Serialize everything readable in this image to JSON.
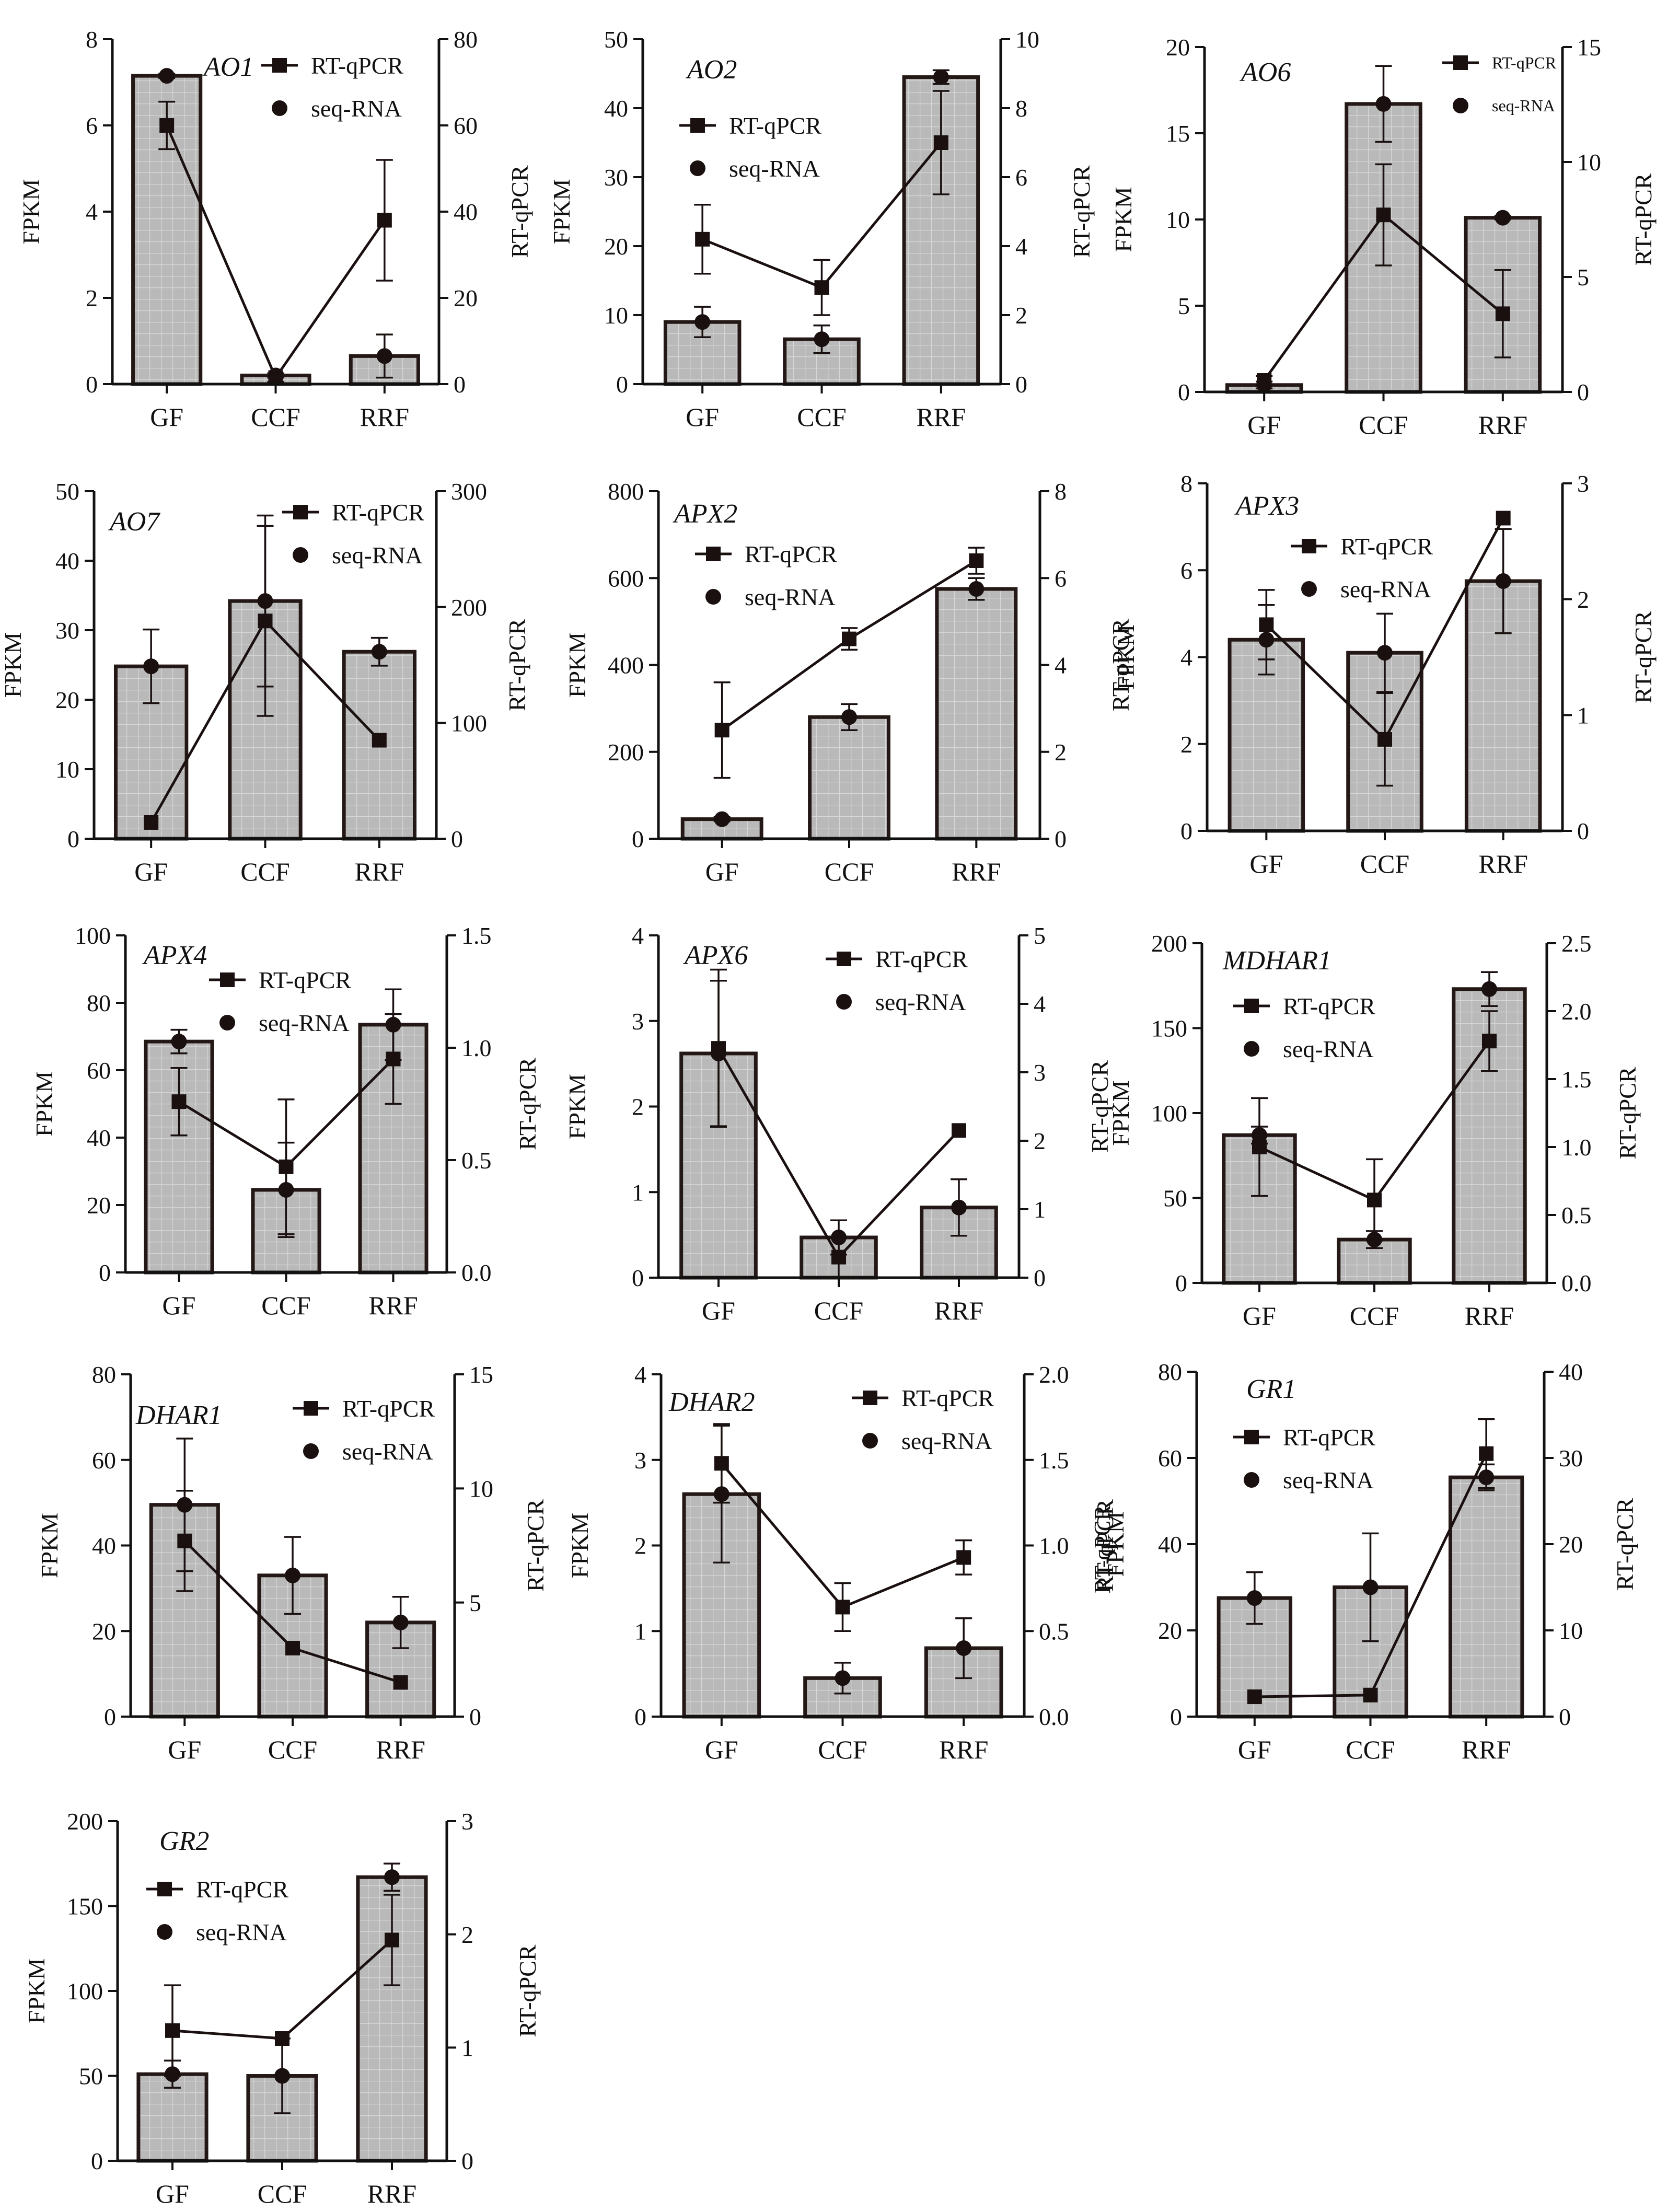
{
  "colors": {
    "bar_fill": "#b9b9b9",
    "bar_grid": "#d6d6d6",
    "bar_edge": "#231815",
    "line": "#1a1010",
    "axis": "#111111"
  },
  "legend": {
    "qpcr": "RT-qPCR",
    "seq": "seq-RNA"
  },
  "chart_data": [
    {
      "type": "bar+line",
      "title": "AO1",
      "categories": [
        "GF",
        "CCF",
        "RRF"
      ],
      "ylabel": "FPKM",
      "y2label": "RT-qPCR",
      "ylim": [
        0,
        8
      ],
      "yticks": [
        0,
        2,
        4,
        6,
        8
      ],
      "yticklabels": [
        "0",
        "2",
        "4",
        "6",
        "8"
      ],
      "y2lim": [
        0,
        80
      ],
      "y2ticks": [
        0,
        20,
        40,
        60,
        80
      ],
      "y2ticklabels": [
        "0",
        "20",
        "40",
        "60",
        "80"
      ],
      "fpkm": [
        7.15,
        0.2,
        0.65
      ],
      "fpkm_err": [
        0.05,
        0.05,
        0.5
      ],
      "seq_rna": [
        7.15,
        0.2,
        0.65
      ],
      "rt_qpcr": [
        60,
        1.5,
        38
      ],
      "rt_qpcr_err": [
        5.5,
        1,
        14
      ]
    },
    {
      "type": "bar+line",
      "title": "AO2",
      "categories": [
        "GF",
        "CCF",
        "RRF"
      ],
      "ylabel": "FPKM",
      "y2label": "RT-qPCR",
      "ylim": [
        0,
        50
      ],
      "yticks": [
        0,
        10,
        20,
        30,
        40,
        50
      ],
      "yticklabels": [
        "0",
        "10",
        "20",
        "30",
        "40",
        "50"
      ],
      "y2lim": [
        0,
        10
      ],
      "y2ticks": [
        0,
        2,
        4,
        6,
        8,
        10
      ],
      "y2ticklabels": [
        "0",
        "2",
        "4",
        "6",
        "8",
        "10"
      ],
      "fpkm": [
        9,
        6.5,
        44.5
      ],
      "fpkm_err": [
        2.2,
        2,
        1
      ],
      "seq_rna": [
        9,
        6.5,
        44.5
      ],
      "rt_qpcr": [
        4.2,
        2.8,
        7
      ],
      "rt_qpcr_err": [
        1,
        0.8,
        1.5
      ]
    },
    {
      "type": "bar+line",
      "title": "AO6",
      "categories": [
        "GF",
        "CCF",
        "RRF"
      ],
      "ylabel": "FPKM",
      "y2label": "RT-qPCR",
      "ylim": [
        0,
        20
      ],
      "yticks": [
        0,
        5,
        10,
        15,
        20
      ],
      "yticklabels": [
        "0",
        "5",
        "10",
        "15",
        "20"
      ],
      "y2lim": [
        0,
        15
      ],
      "y2ticks": [
        0,
        5,
        10,
        15
      ],
      "y2ticklabels": [
        "0",
        "5",
        "10",
        "15"
      ],
      "fpkm": [
        0.4,
        16.7,
        10.1
      ],
      "fpkm_err": [
        0.2,
        2.2,
        0.1
      ],
      "seq_rna": [
        0.4,
        16.7,
        10.1
      ],
      "rt_qpcr": [
        0.5,
        7.7,
        3.4
      ],
      "rt_qpcr_err": [
        0.2,
        2.2,
        1.9
      ]
    },
    {
      "type": "bar+line",
      "title": "AO7",
      "categories": [
        "GF",
        "CCF",
        "RRF"
      ],
      "ylabel": "FPKM",
      "y2label": "RT-qPCR",
      "ylim": [
        0,
        50
      ],
      "yticks": [
        0,
        10,
        20,
        30,
        40,
        50
      ],
      "yticklabels": [
        "0",
        "10",
        "20",
        "30",
        "40",
        "50"
      ],
      "y2lim": [
        0,
        300
      ],
      "y2ticks": [
        0,
        100,
        200,
        300
      ],
      "y2ticklabels": [
        "0",
        "100",
        "200",
        "300"
      ],
      "fpkm": [
        24.8,
        34.2,
        26.9
      ],
      "fpkm_err": [
        5.3,
        12.3,
        2
      ],
      "seq_rna": [
        24.8,
        34.2,
        26.9
      ],
      "rt_qpcr": [
        14,
        188,
        85
      ],
      "rt_qpcr_err": [
        0,
        82,
        0
      ]
    },
    {
      "type": "bar+line",
      "title": "APX2",
      "categories": [
        "GF",
        "CCF",
        "RRF"
      ],
      "ylabel": "FPKM",
      "y2label": "RT-qPCR",
      "ylim": [
        0,
        800
      ],
      "yticks": [
        0,
        200,
        400,
        600,
        800
      ],
      "yticklabels": [
        "0",
        "200",
        "400",
        "600",
        "800"
      ],
      "y2lim": [
        0,
        8
      ],
      "y2ticks": [
        0,
        2,
        4,
        6,
        8
      ],
      "y2ticklabels": [
        "0",
        "2",
        "4",
        "6",
        "8"
      ],
      "fpkm": [
        45,
        280,
        575
      ],
      "fpkm_err": [
        5,
        30,
        25
      ],
      "seq_rna": [
        45,
        280,
        575
      ],
      "rt_qpcr": [
        2.5,
        4.6,
        6.4
      ],
      "rt_qpcr_err": [
        1.1,
        0.25,
        0.3
      ]
    },
    {
      "type": "bar+line",
      "title": "APX3",
      "categories": [
        "GF",
        "CCF",
        "RRF"
      ],
      "ylabel": "FPKM",
      "y2label": "RT-qPCR",
      "ylim": [
        0,
        8
      ],
      "yticks": [
        0,
        2,
        4,
        6,
        8
      ],
      "yticklabels": [
        "0",
        "2",
        "4",
        "6",
        "8"
      ],
      "y2lim": [
        0,
        3
      ],
      "y2ticks": [
        0,
        1,
        2,
        3
      ],
      "y2ticklabels": [
        "0",
        "1",
        "2",
        "3"
      ],
      "fpkm": [
        4.4,
        4.1,
        5.75
      ],
      "fpkm_err": [
        0.8,
        0.9,
        1.2
      ],
      "seq_rna": [
        4.4,
        4.1,
        5.75
      ],
      "rt_qpcr": [
        1.78,
        0.79,
        2.7
      ],
      "rt_qpcr_err": [
        0.3,
        0.4,
        0
      ]
    },
    {
      "type": "bar+line",
      "title": "APX4",
      "categories": [
        "GF",
        "CCF",
        "RRF"
      ],
      "ylabel": "FPKM",
      "y2label": "RT-qPCR",
      "ylim": [
        0,
        100
      ],
      "yticks": [
        0,
        20,
        40,
        60,
        80,
        100
      ],
      "yticklabels": [
        "0",
        "20",
        "40",
        "60",
        "80",
        "100"
      ],
      "y2lim": [
        0,
        1.5
      ],
      "y2ticks": [
        0,
        0.5,
        1.0,
        1.5
      ],
      "y2ticklabels": [
        "0.0",
        "0.5",
        "1.0",
        "1.5"
      ],
      "fpkm": [
        68.5,
        24.5,
        73.5
      ],
      "fpkm_err": [
        3.5,
        14,
        10.5
      ],
      "seq_rna": [
        68.5,
        24.5,
        73.5
      ],
      "rt_qpcr": [
        0.76,
        0.47,
        0.95
      ],
      "rt_qpcr_err": [
        0.15,
        0.3,
        0.2
      ]
    },
    {
      "type": "bar+line",
      "title": "APX6",
      "categories": [
        "GF",
        "CCF",
        "RRF"
      ],
      "ylabel": "FPKM",
      "y2label": "RT-qPCR",
      "ylim": [
        0,
        4
      ],
      "yticks": [
        0,
        1,
        2,
        3,
        4
      ],
      "yticklabels": [
        "0",
        "1",
        "2",
        "3",
        "4"
      ],
      "y2lim": [
        0,
        5
      ],
      "y2ticks": [
        0,
        1,
        2,
        3,
        4,
        5
      ],
      "y2ticklabels": [
        "0",
        "1",
        "2",
        "3",
        "4",
        "5"
      ],
      "fpkm": [
        2.62,
        0.47,
        0.82
      ],
      "fpkm_err": [
        0.85,
        0.2,
        0.33
      ],
      "seq_rna": [
        2.62,
        0.47,
        0.82
      ],
      "rt_qpcr": [
        3.35,
        0.3,
        2.15
      ],
      "rt_qpcr_err": [
        1.15,
        0.3,
        0
      ]
    },
    {
      "type": "bar+line",
      "title": "MDHAR1",
      "categories": [
        "GF",
        "CCF",
        "RRF"
      ],
      "ylabel": "FPKM",
      "y2label": "RT-qPCR",
      "ylim": [
        0,
        200
      ],
      "yticks": [
        0,
        50,
        100,
        150,
        200
      ],
      "yticklabels": [
        "0",
        "50",
        "100",
        "150",
        "200"
      ],
      "y2lim": [
        0,
        2.5
      ],
      "y2ticks": [
        0,
        0.5,
        1.0,
        1.5,
        2.0,
        2.5
      ],
      "y2ticklabels": [
        "0.0",
        "0.5",
        "1.0",
        "1.5",
        "2.0",
        "2.5"
      ],
      "fpkm": [
        87,
        25.5,
        173
      ],
      "fpkm_err": [
        5,
        5,
        10
      ],
      "seq_rna": [
        87,
        25.5,
        173
      ],
      "rt_qpcr": [
        1.0,
        0.61,
        1.78
      ],
      "rt_qpcr_err": [
        0.36,
        0.3,
        0.22
      ]
    },
    {
      "type": "bar+line",
      "title": "DHAR1",
      "categories": [
        "GF",
        "CCF",
        "RRF"
      ],
      "ylabel": "FPKM",
      "y2label": "RT-qPCR",
      "ylim": [
        0,
        80
      ],
      "yticks": [
        0,
        20,
        40,
        60,
        80
      ],
      "yticklabels": [
        "0",
        "20",
        "40",
        "60",
        "80"
      ],
      "y2lim": [
        0,
        15
      ],
      "y2ticks": [
        0,
        5,
        10,
        15
      ],
      "y2ticklabels": [
        "0",
        "5",
        "10",
        "15"
      ],
      "fpkm": [
        49.5,
        33,
        22
      ],
      "fpkm_err": [
        15.5,
        9,
        6
      ],
      "seq_rna": [
        49.5,
        33,
        22
      ],
      "rt_qpcr": [
        7.7,
        3.0,
        1.5
      ],
      "rt_qpcr_err": [
        2.2,
        0,
        0
      ]
    },
    {
      "type": "bar+line",
      "title": "DHAR2",
      "categories": [
        "GF",
        "CCF",
        "RRF"
      ],
      "ylabel": "FPKM",
      "y2label": "RT-qPCR",
      "ylim": [
        0,
        4
      ],
      "yticks": [
        0,
        1,
        2,
        3,
        4
      ],
      "yticklabels": [
        "0",
        "1",
        "2",
        "3",
        "4"
      ],
      "y2lim": [
        0,
        2
      ],
      "y2ticks": [
        0,
        0.5,
        1.0,
        1.5,
        2.0
      ],
      "y2ticklabels": [
        "0.0",
        "0.5",
        "1.0",
        "1.5",
        "2.0"
      ],
      "fpkm": [
        2.6,
        0.45,
        0.8
      ],
      "fpkm_err": [
        0.8,
        0.18,
        0.35
      ],
      "seq_rna": [
        2.6,
        0.45,
        0.8
      ],
      "rt_qpcr": [
        1.48,
        0.64,
        0.93
      ],
      "rt_qpcr_err": [
        0.23,
        0.14,
        0.1
      ]
    },
    {
      "type": "bar+line",
      "title": "GR1",
      "categories": [
        "GF",
        "CCF",
        "RRF"
      ],
      "ylabel": "FPKM",
      "y2label": "RT-qPCR",
      "ylim": [
        0,
        80
      ],
      "yticks": [
        0,
        20,
        40,
        60,
        80
      ],
      "yticklabels": [
        "0",
        "20",
        "40",
        "60",
        "80"
      ],
      "y2lim": [
        0,
        40
      ],
      "y2ticks": [
        0,
        10,
        20,
        30,
        40
      ],
      "y2ticklabels": [
        "0",
        "10",
        "20",
        "30",
        "40"
      ],
      "fpkm": [
        27.5,
        30,
        55.5
      ],
      "fpkm_err": [
        6,
        12.5,
        3
      ],
      "seq_rna": [
        27.5,
        30,
        55.5
      ],
      "rt_qpcr": [
        2.3,
        2.5,
        30.5
      ],
      "rt_qpcr_err": [
        0,
        0,
        4
      ]
    },
    {
      "type": "bar+line",
      "title": "GR2",
      "categories": [
        "GF",
        "CCF",
        "RRF"
      ],
      "ylabel": "FPKM",
      "y2label": "RT-qPCR",
      "ylim": [
        0,
        200
      ],
      "yticks": [
        0,
        50,
        100,
        150,
        200
      ],
      "yticklabels": [
        "0",
        "50",
        "100",
        "150",
        "200"
      ],
      "y2lim": [
        0,
        3
      ],
      "y2ticks": [
        0,
        1,
        2,
        3
      ],
      "y2ticklabels": [
        "0",
        "1",
        "2",
        "3"
      ],
      "fpkm": [
        51,
        50,
        167
      ],
      "fpkm_err": [
        8,
        22,
        8
      ],
      "seq_rna": [
        51,
        50,
        167
      ],
      "rt_qpcr": [
        1.15,
        1.08,
        1.95
      ],
      "rt_qpcr_err": [
        0.4,
        0,
        0.4
      ]
    }
  ],
  "extra_label": "RT-qPCR"
}
